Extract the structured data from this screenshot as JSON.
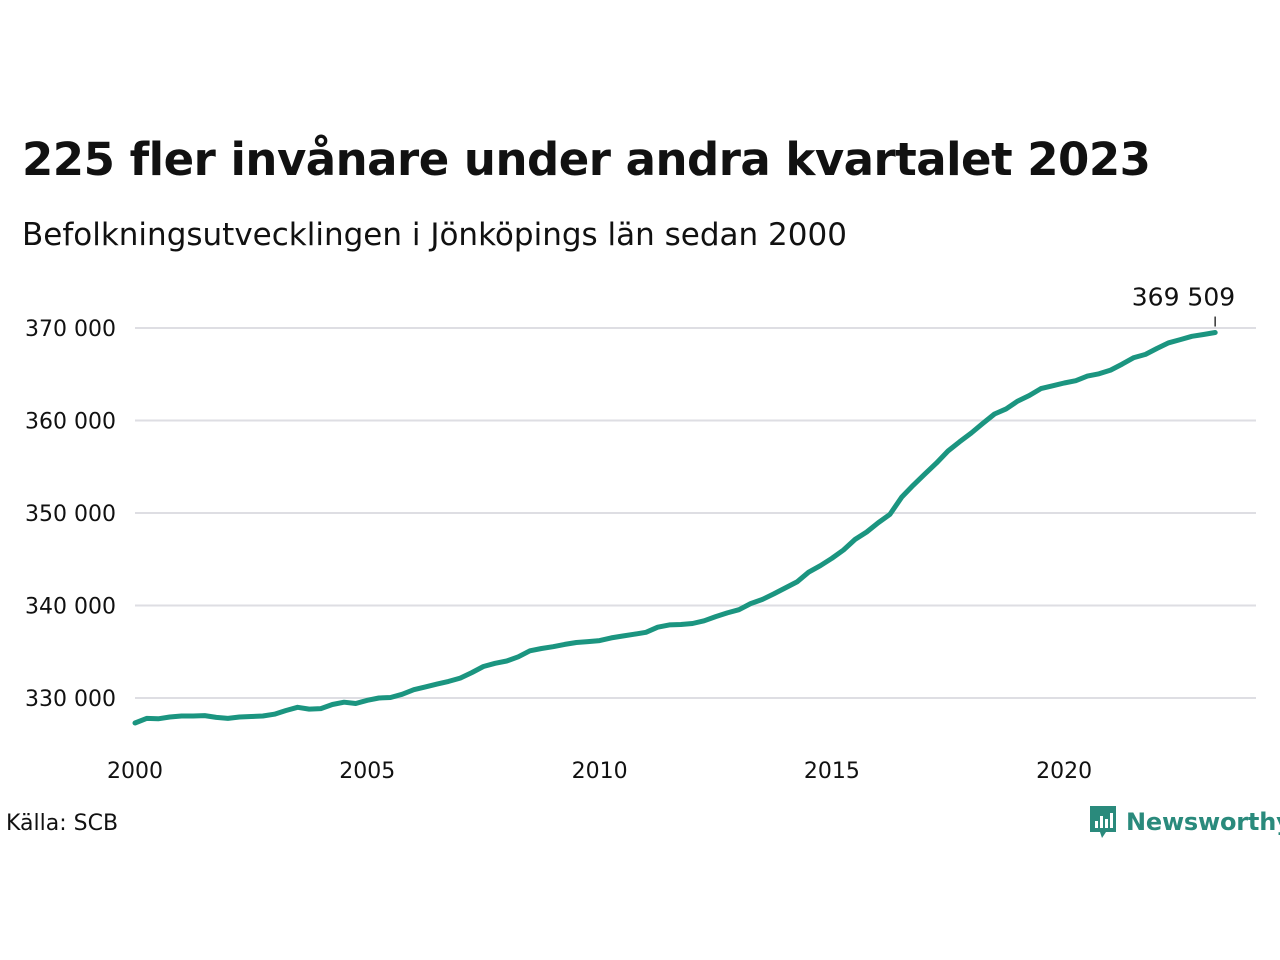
{
  "title": "225 fler invånare under andra kvartalet 2023",
  "subtitle": "Befolkningsutvecklingen i Jönköpings län sedan 2000",
  "source": "Källa: SCB",
  "brand": "Newsworthy",
  "colors": {
    "line": "#1b9580",
    "grid": "#dedee3",
    "brand": "#2a8a7c"
  },
  "chart_data": {
    "type": "line",
    "title": "225 fler invånare under andra kvartalet 2023",
    "subtitle": "Befolkningsutvecklingen i Jönköpings län sedan 2000",
    "xlim": [
      2000,
      2024.5
    ],
    "ylim": [
      325500,
      372000
    ],
    "grid": true,
    "x_ticks": [
      2000,
      2005,
      2010,
      2015,
      2020
    ],
    "x_tick_labels": [
      "2000",
      "2005",
      "2010",
      "2015",
      "2020"
    ],
    "y_ticks": [
      330000,
      340000,
      350000,
      360000,
      370000
    ],
    "y_tick_labels": [
      "330 000",
      "340 000",
      "350 000",
      "360 000",
      "370 000"
    ],
    "end_label": "369 509",
    "series": [
      {
        "x": [
          2000.0,
          2000.25,
          2000.5,
          2000.75,
          2001.0,
          2001.25,
          2001.5,
          2001.75,
          2002.0,
          2002.25,
          2002.5,
          2002.75,
          2003.0,
          2003.25,
          2003.5,
          2003.75,
          2004.0,
          2004.25,
          2004.5,
          2004.75,
          2005.0,
          2005.25,
          2005.5,
          2005.75,
          2006.0,
          2006.25,
          2006.5,
          2006.75,
          2007.0,
          2007.25,
          2007.5,
          2007.75,
          2008.0,
          2008.25,
          2008.5,
          2008.75,
          2009.0,
          2009.25,
          2009.5,
          2009.75,
          2010.0,
          2010.25,
          2010.5,
          2010.75,
          2011.0,
          2011.25,
          2011.5,
          2011.75,
          2012.0,
          2012.25,
          2012.5,
          2012.75,
          2013.0,
          2013.25,
          2013.5,
          2013.75,
          2014.0,
          2014.25,
          2014.5,
          2014.75,
          2015.0,
          2015.25,
          2015.5,
          2015.75,
          2016.0,
          2016.25,
          2016.5,
          2016.75,
          2017.0,
          2017.25,
          2017.5,
          2017.75,
          2018.0,
          2018.25,
          2018.5,
          2018.75,
          2019.0,
          2019.25,
          2019.5,
          2019.75,
          2020.0,
          2020.25,
          2020.5,
          2020.75,
          2021.0,
          2021.25,
          2021.5,
          2021.75,
          2022.0,
          2022.25,
          2022.5,
          2022.75,
          2023.0,
          2023.25
        ],
        "y": [
          327300,
          327800,
          327750,
          327950,
          328050,
          328050,
          328100,
          327900,
          327800,
          327950,
          328000,
          328050,
          328250,
          328650,
          329000,
          328800,
          328850,
          329300,
          329550,
          329400,
          329750,
          330000,
          330050,
          330400,
          330900,
          331200,
          331500,
          331800,
          332150,
          332750,
          333400,
          333750,
          334000,
          334450,
          335100,
          335350,
          335550,
          335800,
          336000,
          336100,
          336200,
          336500,
          336700,
          336900,
          337100,
          337650,
          337900,
          337950,
          338050,
          338350,
          338800,
          339200,
          339550,
          340200,
          340650,
          341250,
          341900,
          342550,
          343600,
          344300,
          345100,
          346000,
          347150,
          347950,
          348950,
          349850,
          351700,
          353000,
          354200,
          355400,
          356700,
          357700,
          358650,
          359700,
          360700,
          361250,
          362100,
          362700,
          363450,
          363750,
          364050,
          364300,
          364800,
          365050,
          365450,
          366100,
          366800,
          367150,
          367800,
          368400,
          368750,
          369100,
          369300,
          369509
        ]
      }
    ]
  }
}
